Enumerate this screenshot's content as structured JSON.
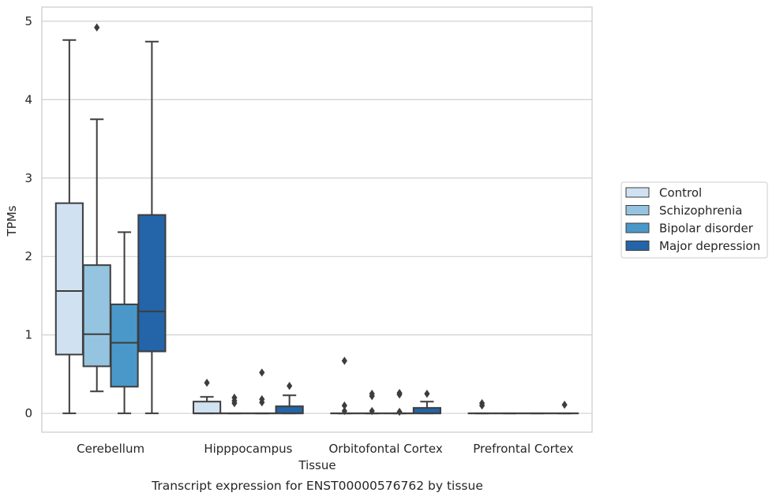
{
  "chart_data": {
    "type": "boxplot",
    "caption": "Transcript expression for ENST00000576762 by tissue",
    "xlabel": "Tissue",
    "ylabel": "TPMs",
    "ylim": [
      -0.24,
      5.18
    ],
    "yticks": [
      0,
      1,
      2,
      3,
      4,
      5
    ],
    "grid": "horizontal",
    "legend_position": "right",
    "categories": [
      "Cerebellum",
      "Hipppocampus",
      "Orbitofontal Cortex",
      "Prefrontal Cortex"
    ],
    "series": [
      {
        "name": "Control",
        "color": "#d0e1f2",
        "boxes": [
          {
            "whislo": 0,
            "q1": 0.75,
            "med": 1.56,
            "q3": 2.68,
            "whishi": 4.76,
            "fliers": []
          },
          {
            "whislo": 0,
            "q1": 0,
            "med": 0,
            "q3": 0.15,
            "whishi": 0.21,
            "fliers": [
              0.39
            ]
          },
          {
            "whislo": 0,
            "q1": 0,
            "med": 0,
            "q3": 0,
            "whishi": 0,
            "fliers": [
              0.67,
              0.1,
              0.03
            ]
          },
          {
            "whislo": 0,
            "q1": 0,
            "med": 0,
            "q3": 0,
            "whishi": 0,
            "fliers": [
              0.13,
              0.1
            ]
          }
        ]
      },
      {
        "name": "Schizophrenia",
        "color": "#94c4df",
        "boxes": [
          {
            "whislo": 0.28,
            "q1": 0.6,
            "med": 1.01,
            "q3": 1.89,
            "whishi": 3.75,
            "fliers": [
              4.92
            ]
          },
          {
            "whislo": 0,
            "q1": 0,
            "med": 0,
            "q3": 0,
            "whishi": 0,
            "fliers": [
              0.2,
              0.16,
              0.13
            ]
          },
          {
            "whislo": 0,
            "q1": 0,
            "med": 0,
            "q3": 0,
            "whishi": 0,
            "fliers": [
              0.25,
              0.22,
              0.03
            ]
          },
          {
            "whislo": 0,
            "q1": 0,
            "med": 0,
            "q3": 0,
            "whishi": 0,
            "fliers": []
          }
        ]
      },
      {
        "name": "Bipolar disorder",
        "color": "#4a98c9",
        "boxes": [
          {
            "whislo": 0,
            "q1": 0.34,
            "med": 0.9,
            "q3": 1.39,
            "whishi": 2.31,
            "fliers": []
          },
          {
            "whislo": 0,
            "q1": 0,
            "med": 0,
            "q3": 0,
            "whishi": 0,
            "fliers": [
              0.52,
              0.18,
              0.14
            ]
          },
          {
            "whislo": 0,
            "q1": 0,
            "med": 0,
            "q3": 0,
            "whishi": 0,
            "fliers": [
              0.26,
              0.24,
              0.02
            ]
          },
          {
            "whislo": 0,
            "q1": 0,
            "med": 0,
            "q3": 0,
            "whishi": 0,
            "fliers": []
          }
        ]
      },
      {
        "name": "Major depression",
        "color": "#2464a8",
        "boxes": [
          {
            "whislo": 0,
            "q1": 0.79,
            "med": 1.3,
            "q3": 2.53,
            "whishi": 4.74,
            "fliers": []
          },
          {
            "whislo": 0,
            "q1": 0,
            "med": 0,
            "q3": 0.09,
            "whishi": 0.23,
            "fliers": [
              0.35
            ]
          },
          {
            "whislo": 0,
            "q1": 0,
            "med": 0,
            "q3": 0.07,
            "whishi": 0.15,
            "fliers": [
              0.25
            ]
          },
          {
            "whislo": 0,
            "q1": 0,
            "med": 0,
            "q3": 0,
            "whishi": 0,
            "fliers": [
              0.11
            ]
          }
        ]
      }
    ]
  }
}
